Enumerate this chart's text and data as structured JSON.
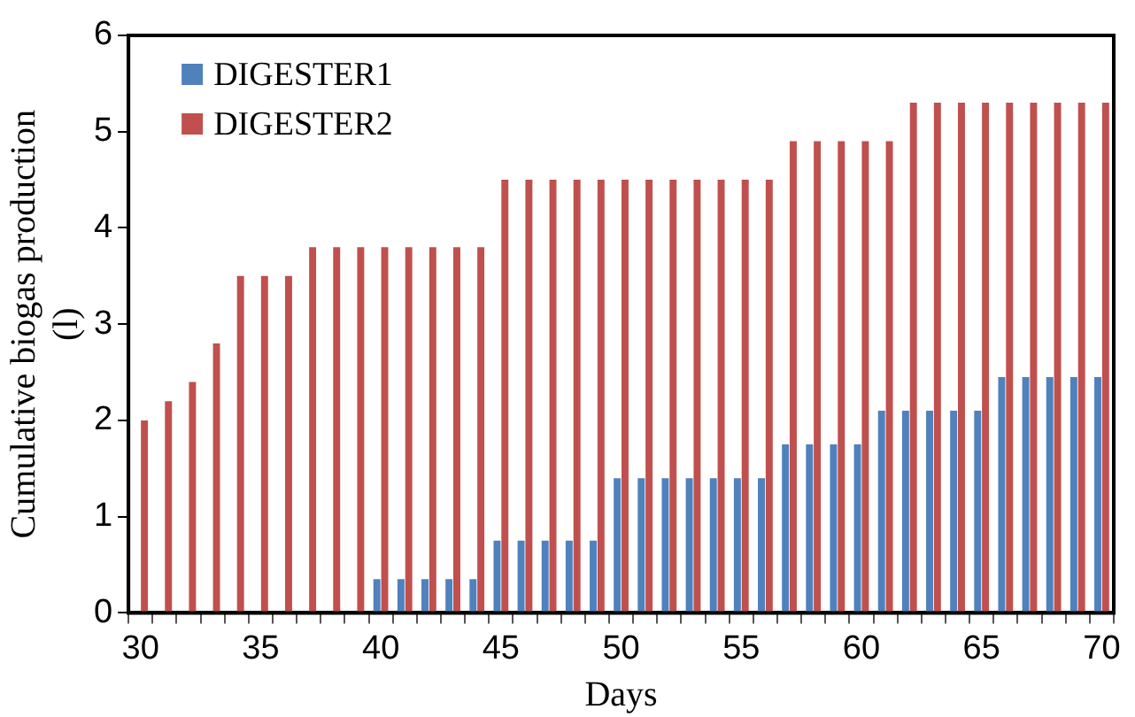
{
  "chart_data": {
    "type": "bar",
    "xlabel": "Days",
    "ylabel": "Cumulative biogas production (l)",
    "categories": [
      "30",
      null,
      null,
      null,
      null,
      "35",
      null,
      null,
      null,
      null,
      "40",
      null,
      null,
      null,
      null,
      "45",
      null,
      null,
      null,
      null,
      "50",
      null,
      null,
      null,
      null,
      "55",
      null,
      null,
      null,
      null,
      "60",
      null,
      null,
      null,
      null,
      "65",
      null,
      null,
      null,
      null,
      "70"
    ],
    "series": [
      {
        "name": "DIGESTER1",
        "color": "#4f81bd",
        "values": [
          0,
          0,
          0,
          0,
          0,
          0,
          0,
          0,
          0,
          0,
          0.35,
          0.35,
          0.35,
          0.35,
          0.35,
          0.75,
          0.75,
          0.75,
          0.75,
          0.75,
          1.4,
          1.4,
          1.4,
          1.4,
          1.4,
          1.4,
          1.4,
          1.75,
          1.75,
          1.75,
          1.75,
          2.1,
          2.1,
          2.1,
          2.1,
          2.1,
          2.45,
          2.45,
          2.45,
          2.45,
          2.45
        ]
      },
      {
        "name": "DIGESTER2",
        "color": "#c0504d",
        "values": [
          2.0,
          2.2,
          2.4,
          2.8,
          3.5,
          3.5,
          3.5,
          3.8,
          3.8,
          3.8,
          3.8,
          3.8,
          3.8,
          3.8,
          3.8,
          4.5,
          4.5,
          4.5,
          4.5,
          4.5,
          4.5,
          4.5,
          4.5,
          4.5,
          4.5,
          4.5,
          4.5,
          4.9,
          4.9,
          4.9,
          4.9,
          4.9,
          5.3,
          5.3,
          5.3,
          5.3,
          5.3,
          5.3,
          5.3,
          5.3,
          5.3
        ]
      }
    ],
    "ylim": [
      0,
      6
    ],
    "yticks": [
      0,
      1,
      2,
      3,
      4,
      5,
      6
    ],
    "grid": false,
    "legend": "top left"
  }
}
